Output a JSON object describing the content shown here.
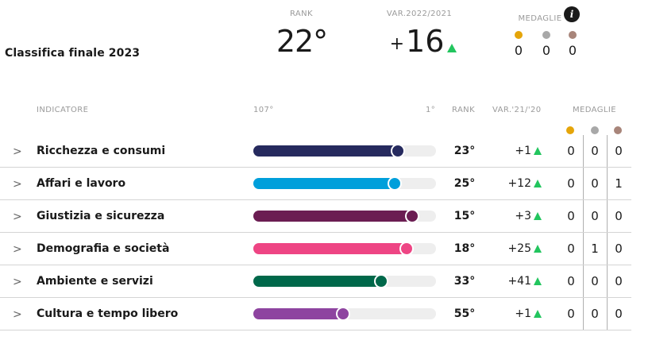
{
  "summary": {
    "title": "Classifica finale 2023",
    "rank_label": "RANK",
    "rank_value": "22°",
    "var_label": "VAR.2022/2021",
    "var_sign": "+",
    "var_value": "16",
    "medals_label": "MEDAGLIE",
    "info_glyph": "i",
    "medals": {
      "gold": "0",
      "silver": "0",
      "bronze": "0"
    }
  },
  "colors": {
    "gold": "#e5a50a",
    "silver": "#a8a8a8",
    "bronze": "#a8857a",
    "up_arrow": "#22c55e"
  },
  "table": {
    "headers": {
      "indicator": "INDICATORE",
      "scale_min": "107°",
      "scale_max": "1°",
      "rank": "RANK",
      "variation": "VAR.'21/'20",
      "medals": "MEDAGLIE"
    },
    "scale": {
      "worst_rank": 107,
      "best_rank": 1
    },
    "rows": [
      {
        "name": "Ricchezza e consumi",
        "rank": "23°",
        "rank_num": 23,
        "var": "+1",
        "color": "#262a5e",
        "gold": "0",
        "silver": "0",
        "bronze": "0"
      },
      {
        "name": "Affari e lavoro",
        "rank": "25°",
        "rank_num": 25,
        "var": "+12",
        "color": "#009fdb",
        "gold": "0",
        "silver": "0",
        "bronze": "1"
      },
      {
        "name": "Giustizia e sicurezza",
        "rank": "15°",
        "rank_num": 15,
        "var": "+3",
        "color": "#6b1d52",
        "gold": "0",
        "silver": "0",
        "bronze": "0"
      },
      {
        "name": "Demografia e società",
        "rank": "18°",
        "rank_num": 18,
        "var": "+25",
        "color": "#ee4584",
        "gold": "0",
        "silver": "1",
        "bronze": "0"
      },
      {
        "name": "Ambiente e servizi",
        "rank": "33°",
        "rank_num": 33,
        "var": "+41",
        "color": "#00684a",
        "gold": "0",
        "silver": "0",
        "bronze": "0"
      },
      {
        "name": "Cultura e tempo libero",
        "rank": "55°",
        "rank_num": 55,
        "var": "+1",
        "color": "#8e44a0",
        "gold": "0",
        "silver": "0",
        "bronze": "0"
      }
    ]
  }
}
